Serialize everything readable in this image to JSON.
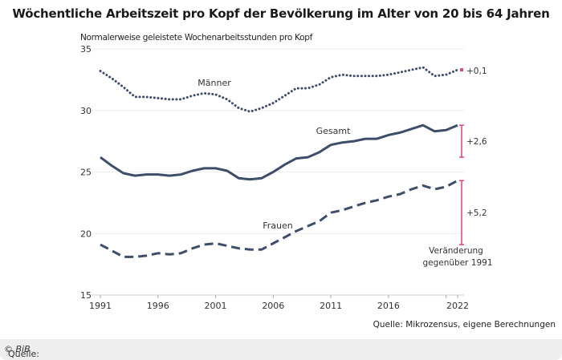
{
  "title": "Wöchentliche Arbeitszeit pro Kopf der Bevölkerung im Alter von 20 bis 64 Jahren",
  "source_text": "Quelle: Mikrozensus, eigene Berechnungen",
  "footer": {
    "prefix": "Quelle: ",
    "copyright": "© BiB"
  },
  "colors": {
    "line": "#3d4e6b",
    "accent": "#e0457b",
    "grid": "#eeeeee",
    "axis": "#cccccc"
  },
  "chart_data": {
    "type": "line",
    "title": "Wöchentliche Arbeitszeit pro Kopf der Bevölkerung im Alter von 20 bis 64 Jahren",
    "ylabel": "Normalerweise geleistete Wochenarbeitsstunden pro Kopf",
    "xlabel": "",
    "ylim": [
      15,
      35
    ],
    "yticks": [
      15,
      20,
      25,
      30,
      35
    ],
    "xlim": [
      1991,
      2022
    ],
    "xticks": [
      1991,
      1996,
      2001,
      2006,
      2011,
      2016,
      2022
    ],
    "xtick_labels": [
      "1991",
      "1996",
      "2001",
      "2006",
      "2011",
      "2016",
      "2022"
    ],
    "grid": true,
    "x": [
      1991,
      1992,
      1993,
      1994,
      1995,
      1996,
      1997,
      1998,
      1999,
      2000,
      2001,
      2002,
      2003,
      2004,
      2005,
      2006,
      2007,
      2008,
      2009,
      2010,
      2011,
      2012,
      2013,
      2014,
      2015,
      2016,
      2017,
      2018,
      2019,
      2020,
      2021,
      2022
    ],
    "series": [
      {
        "name": "Männer",
        "style": "dotted",
        "values": [
          33.2,
          32.6,
          31.9,
          31.1,
          31.1,
          31.0,
          30.9,
          30.9,
          31.2,
          31.4,
          31.3,
          30.9,
          30.2,
          29.9,
          30.2,
          30.6,
          31.2,
          31.8,
          31.8,
          32.1,
          32.7,
          32.9,
          32.8,
          32.8,
          32.8,
          32.9,
          33.1,
          33.3,
          33.5,
          32.8,
          32.9,
          33.3
        ],
        "change_label": "+0,1"
      },
      {
        "name": "Gesamt",
        "style": "solid",
        "values": [
          26.2,
          25.5,
          24.9,
          24.7,
          24.8,
          24.8,
          24.7,
          24.8,
          25.1,
          25.3,
          25.3,
          25.1,
          24.5,
          24.4,
          24.5,
          25.0,
          25.6,
          26.1,
          26.2,
          26.6,
          27.2,
          27.4,
          27.5,
          27.7,
          27.7,
          28.0,
          28.2,
          28.5,
          28.8,
          28.3,
          28.4,
          28.8
        ],
        "change_label": "+2,6"
      },
      {
        "name": "Frauen",
        "style": "dashed",
        "values": [
          19.1,
          18.6,
          18.1,
          18.1,
          18.2,
          18.4,
          18.3,
          18.4,
          18.8,
          19.1,
          19.2,
          19.0,
          18.8,
          18.7,
          18.7,
          19.2,
          19.7,
          20.2,
          20.6,
          21.0,
          21.7,
          21.9,
          22.2,
          22.5,
          22.7,
          23.0,
          23.2,
          23.6,
          23.9,
          23.6,
          23.8,
          24.3
        ],
        "change_label": "+5,2"
      }
    ],
    "annotations": {
      "change_note_line1": "Veränderung",
      "change_note_line2": "gegenüber 1991"
    }
  }
}
